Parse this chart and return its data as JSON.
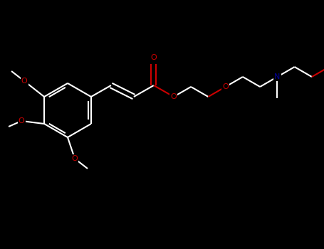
{
  "bg_color": "#000000",
  "bond_color": "#ffffff",
  "oxygen_color": "#cc0000",
  "nitrogen_color": "#000099",
  "line_width": 1.5,
  "figsize": [
    4.55,
    3.5
  ],
  "dpi": 100,
  "xlim": [
    0,
    455
  ],
  "ylim": [
    0,
    350
  ]
}
